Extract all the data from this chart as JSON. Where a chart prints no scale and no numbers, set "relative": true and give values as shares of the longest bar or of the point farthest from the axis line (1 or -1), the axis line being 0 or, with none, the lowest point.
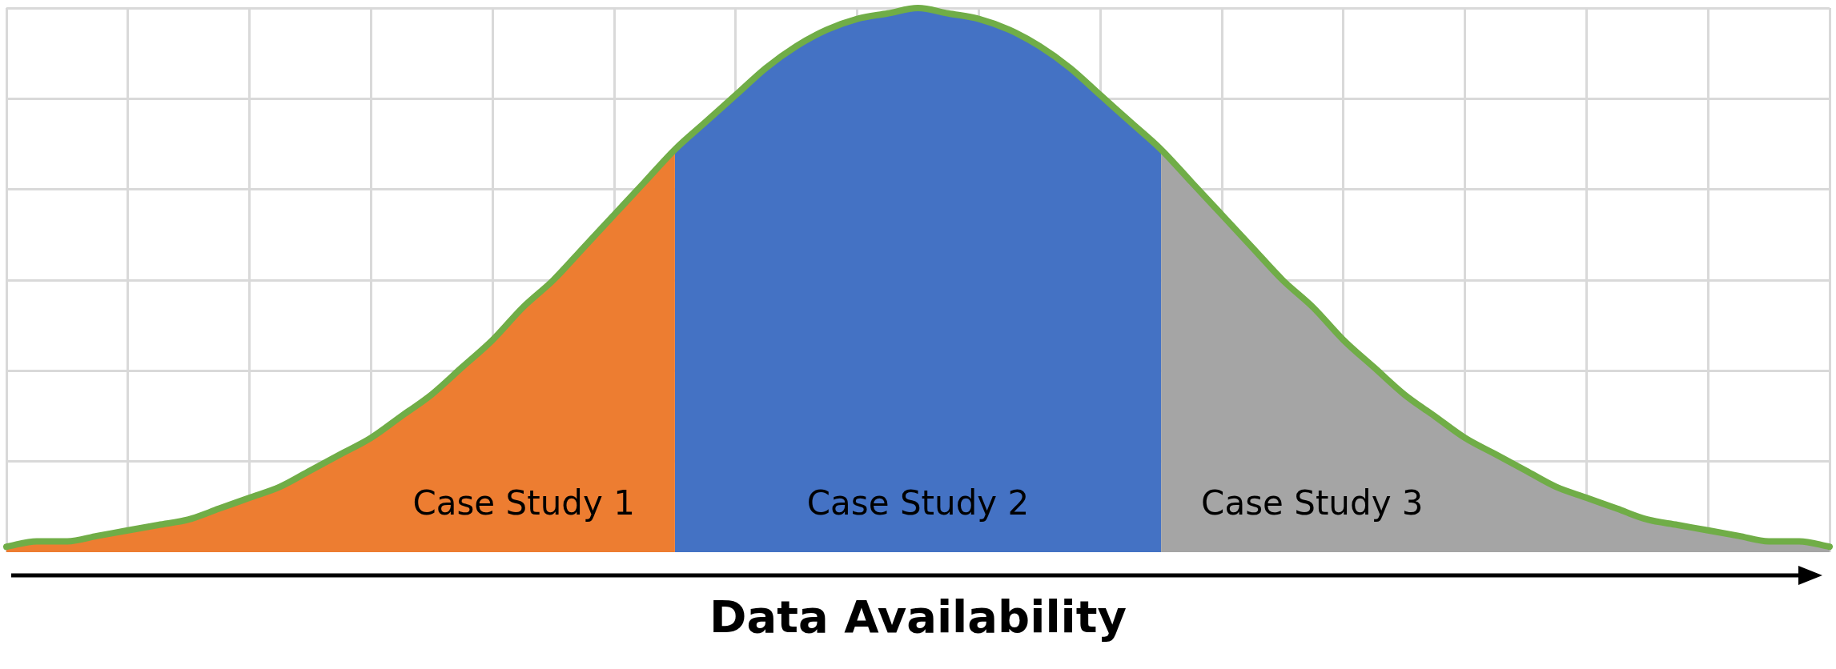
{
  "chart_data": {
    "type": "area",
    "relative": true,
    "xlabel": "Data Availability",
    "grid": true,
    "legend": false,
    "marker": "none",
    "categories": [
      null,
      null,
      null,
      null,
      null,
      null,
      null,
      null,
      null,
      null,
      null,
      null,
      null,
      null,
      null,
      null,
      null,
      null,
      null,
      null,
      null,
      null,
      null,
      null,
      null,
      null,
      null,
      null,
      null,
      null,
      null,
      null,
      null,
      null,
      null,
      null,
      null,
      null,
      null,
      null,
      null,
      null,
      null,
      null,
      null,
      null,
      null,
      null,
      null,
      null,
      null,
      null,
      null,
      null,
      null,
      null,
      null,
      null,
      null,
      null,
      null
    ],
    "series": [
      {
        "name": "Case Study 1",
        "color": "#ed7d31",
        "values": [
          0.01,
          0.02,
          0.02,
          0.03,
          0.04,
          0.05,
          0.06,
          0.08,
          0.1,
          0.12,
          0.15,
          0.18,
          0.21,
          0.25,
          0.29,
          0.34,
          0.39,
          0.45,
          0.5,
          0.56,
          0.62,
          0.68,
          0.74,
          null,
          null,
          null,
          null,
          null,
          null,
          null,
          null,
          null,
          null,
          null,
          null,
          null,
          null,
          null,
          null,
          null,
          null,
          null,
          null,
          null,
          null,
          null,
          null,
          null,
          null,
          null,
          null,
          null,
          null,
          null,
          null,
          null,
          null,
          null,
          null,
          null,
          null
        ]
      },
      {
        "name": "Case Study 2",
        "color": "#4472c4",
        "values": [
          null,
          null,
          null,
          null,
          null,
          null,
          null,
          null,
          null,
          null,
          null,
          null,
          null,
          null,
          null,
          null,
          null,
          null,
          null,
          null,
          null,
          null,
          0.74,
          0.79,
          0.84,
          0.89,
          0.93,
          0.96,
          0.98,
          0.99,
          1.0,
          0.99,
          0.98,
          0.96,
          0.93,
          0.89,
          0.84,
          0.79,
          0.74,
          null,
          null,
          null,
          null,
          null,
          null,
          null,
          null,
          null,
          null,
          null,
          null,
          null,
          null,
          null,
          null,
          null,
          null,
          null,
          null,
          null,
          null
        ]
      },
      {
        "name": "Case Study 3",
        "color": "#a5a5a5",
        "values": [
          null,
          null,
          null,
          null,
          null,
          null,
          null,
          null,
          null,
          null,
          null,
          null,
          null,
          null,
          null,
          null,
          null,
          null,
          null,
          null,
          null,
          null,
          null,
          null,
          null,
          null,
          null,
          null,
          null,
          null,
          null,
          null,
          null,
          null,
          null,
          null,
          null,
          null,
          0.74,
          0.68,
          0.62,
          0.56,
          0.5,
          0.45,
          0.39,
          0.34,
          0.29,
          0.25,
          0.21,
          0.18,
          0.15,
          0.12,
          0.1,
          0.08,
          0.06,
          0.05,
          0.04,
          0.03,
          0.02,
          0.02,
          0.01
        ]
      },
      {
        "type": "line",
        "color": "#70ad47",
        "values": [
          0.01,
          0.02,
          0.02,
          0.03,
          0.04,
          0.05,
          0.06,
          0.08,
          0.1,
          0.12,
          0.15,
          0.18,
          0.21,
          0.25,
          0.29,
          0.34,
          0.39,
          0.45,
          0.5,
          0.56,
          0.62,
          0.68,
          0.74,
          0.79,
          0.84,
          0.89,
          0.93,
          0.96,
          0.98,
          0.99,
          1.0,
          0.99,
          0.98,
          0.96,
          0.93,
          0.89,
          0.84,
          0.79,
          0.74,
          0.68,
          0.62,
          0.56,
          0.5,
          0.45,
          0.39,
          0.34,
          0.29,
          0.25,
          0.21,
          0.18,
          0.15,
          0.12,
          0.1,
          0.08,
          0.06,
          0.05,
          0.04,
          0.03,
          0.02,
          0.02,
          0.01
        ]
      }
    ]
  }
}
